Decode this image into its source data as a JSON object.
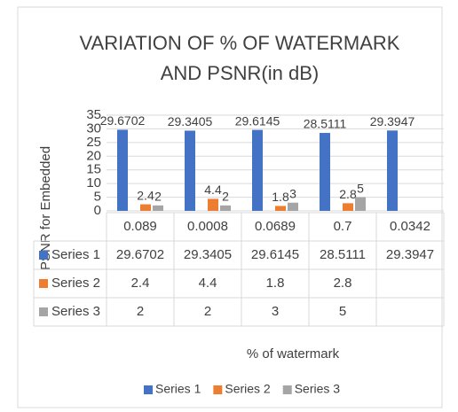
{
  "chart_data": {
    "type": "bar",
    "title": [
      "VARIATION OF % OF WATERMARK",
      "AND PSNR(in dB)"
    ],
    "y_label": "PSNR for Embedded",
    "x_label": "% of watermark",
    "categories": [
      "0.089",
      "0.0008",
      "0.0689",
      "0.7",
      "0.0342"
    ],
    "series": [
      {
        "name": "Series 1",
        "color": "#4472c4",
        "values": [
          29.6702,
          29.3405,
          29.6145,
          28.5111,
          29.3947
        ]
      },
      {
        "name": "Series 2",
        "color": "#ed7d31",
        "values": [
          2.4,
          4.4,
          1.8,
          2.8,
          null
        ]
      },
      {
        "name": "Series 3",
        "color": "#a5a5a5",
        "values": [
          2,
          2,
          3,
          5,
          null
        ]
      }
    ],
    "ylim": [
      0,
      35
    ],
    "yticks": [
      0,
      5,
      10,
      15,
      20,
      25,
      30,
      35
    ],
    "grid": true,
    "legend": "bottom"
  }
}
